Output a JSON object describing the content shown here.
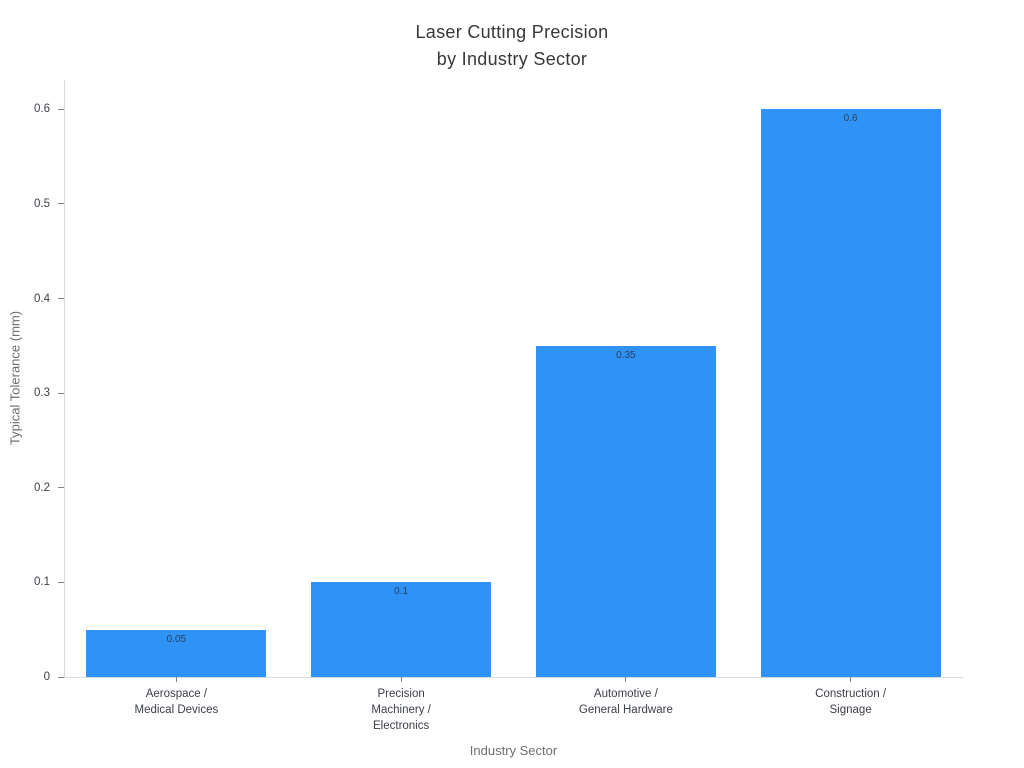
{
  "chart": {
    "title": "Laser Cutting Precision\nby Industry Sector",
    "ylabel": "Typical Tolerance (mm)",
    "xlabel": "Industry Sector"
  },
  "chart_data": {
    "type": "bar",
    "title": "Laser Cutting Precision by Industry Sector",
    "xlabel": "Industry Sector",
    "ylabel": "Typical Tolerance (mm)",
    "categories": [
      "Aerospace /\nMedical Devices",
      "Precision\nMachinery /\nElectronics",
      "Automotive /\nGeneral Hardware",
      "Construction /\nSignage"
    ],
    "values": [
      0.05,
      0.1,
      0.35,
      0.6
    ],
    "bar_labels": [
      "0.05",
      "0.1",
      "0.35",
      "0.6"
    ],
    "ytick_values": [
      0,
      0.1,
      0.2,
      0.3,
      0.4,
      0.5,
      0.6
    ],
    "ytick_labels": [
      "0",
      "0.1",
      "0.2",
      "0.3",
      "0.4",
      "0.5",
      "0.6"
    ],
    "ylim": [
      0,
      0.631
    ],
    "grid": false,
    "legend": "none",
    "bar_width_fraction": 0.8,
    "colors": {
      "bar": "#2e93f5",
      "axis_line": "#d9d9d9",
      "tick_text": "#3b3f46",
      "axis_title": "#6e6e6e",
      "title": "#383838",
      "bar_label": "#2a3f5f"
    }
  }
}
